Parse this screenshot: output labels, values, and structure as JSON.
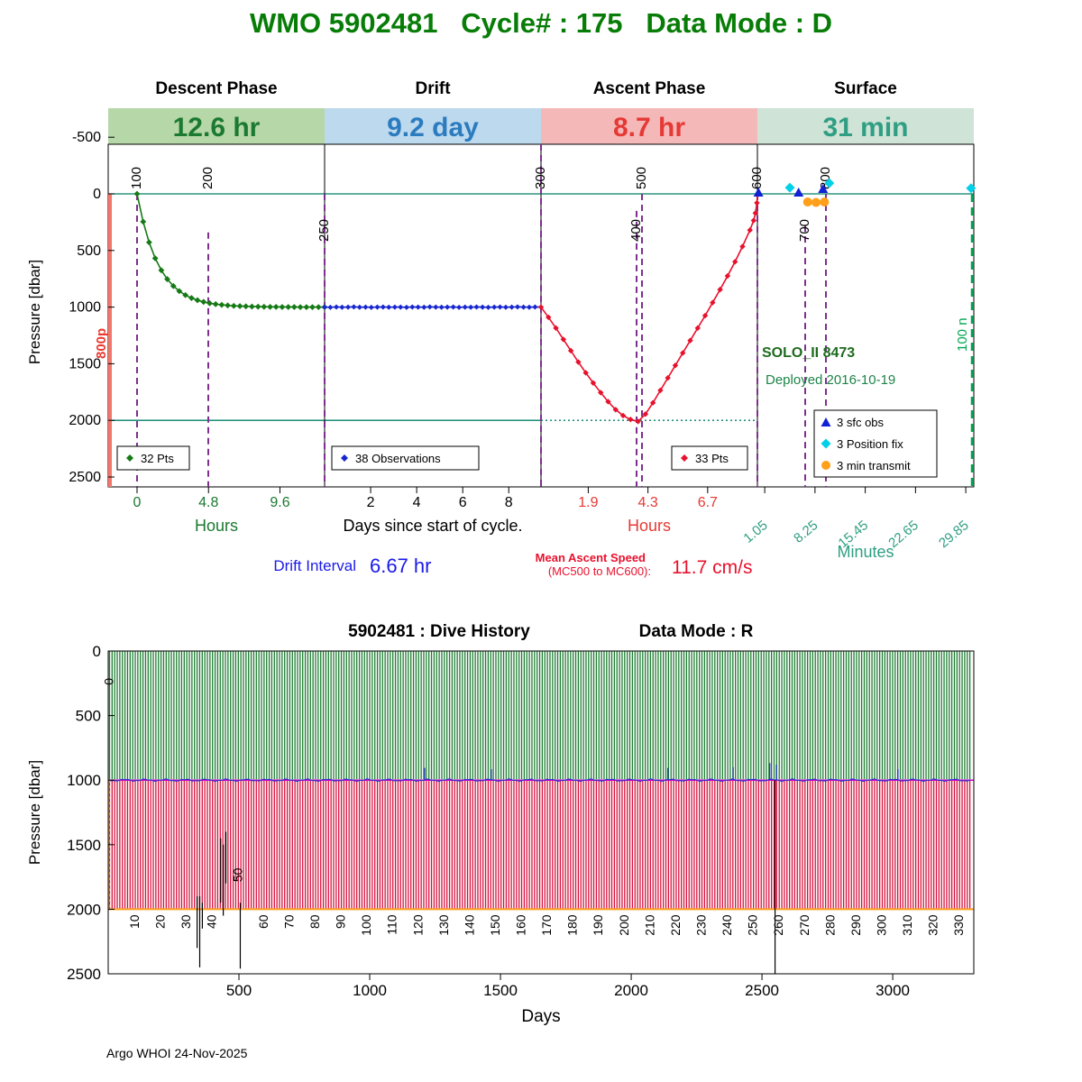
{
  "page": {
    "title": "WMO 5902481   Cycle# : 175   Data Mode : D",
    "footer": "Argo WHOI 24-Nov-2025"
  },
  "chart_data": [
    {
      "type": "line",
      "name": "cycle_profile",
      "ylabel": "Pressure [dbar]",
      "yticks": [
        -500,
        0,
        500,
        1000,
        1500,
        2000,
        2500
      ],
      "ylim": [
        -500,
        2590
      ],
      "colors": {
        "descent": "#157a15",
        "drift": "#1726cf",
        "ascent": "#e8112d",
        "teal": "#008066",
        "message_line": "#7e2f8e",
        "end_line": "#00a651",
        "park_line": "#f4766b",
        "park_label": "#e8392f",
        "sfc_obs": "#1021d6",
        "position_fix": "#00d0e8",
        "min_transmit": "#ff9f1a",
        "solo": "#1d6b1d",
        "deployed": "#1e8449",
        "drift_text": "#1a1ae8"
      },
      "phases": [
        {
          "label": "Descent Phase",
          "duration": "12.6 hr",
          "band_bg": "#b6d7a8",
          "band_fg": "#1b7931",
          "axis_label": "Hours",
          "axis_color": "#1b7931",
          "t_max": 12.6,
          "t_offset_frac": 0.1333,
          "t_span_frac": 0.8667,
          "ticks": [
            {
              "v": 0,
              "label": "0"
            },
            {
              "v": 4.8,
              "label": "4.8"
            },
            {
              "v": 9.6,
              "label": "9.6"
            }
          ]
        },
        {
          "label": "Drift",
          "duration": "9.2 day",
          "band_bg": "#bcd9ee",
          "band_fg": "#2b7bbf",
          "axis_label": "Days since start of cycle.",
          "axis_color": "#000000",
          "t_max": 9.4,
          "t_offset_frac": 0,
          "t_span_frac": 1,
          "ticks": [
            {
              "v": 2,
              "label": "2"
            },
            {
              "v": 4,
              "label": "4"
            },
            {
              "v": 6,
              "label": "6"
            },
            {
              "v": 8,
              "label": "8"
            }
          ]
        },
        {
          "label": "Ascent Phase",
          "duration": "8.7 hr",
          "band_bg": "#f5b8b8",
          "band_fg": "#e53935",
          "axis_label": "Hours",
          "axis_color": "#e53935",
          "t_max": 8.7,
          "t_offset_frac": 0,
          "t_span_frac": 1,
          "ticks": [
            {
              "v": 1.9,
              "label": "1.9"
            },
            {
              "v": 4.3,
              "label": "4.3"
            },
            {
              "v": 6.7,
              "label": "6.7"
            }
          ]
        },
        {
          "label": "Surface",
          "duration": "31 min",
          "band_bg": "#cfe3d6",
          "band_fg": "#2f9e83",
          "axis_label": "Minutes",
          "axis_color": "#2f9e83",
          "t_max": 31,
          "t_offset_frac": 0,
          "t_span_frac": 1,
          "ticks": [
            {
              "v": 1.05,
              "label": "1.05"
            },
            {
              "v": 8.25,
              "label": "8.25"
            },
            {
              "v": 15.45,
              "label": "15.45"
            },
            {
              "v": 22.65,
              "label": "22.65"
            },
            {
              "v": 29.85,
              "label": "29.85"
            }
          ]
        }
      ],
      "message_lines": [
        {
          "label": "100",
          "x": 152,
          "top_dbar": 0,
          "label_pos": "above"
        },
        {
          "label": "200",
          "x": 231,
          "top_dbar": 340,
          "label_pos": "above"
        },
        {
          "label": "250",
          "x": 360,
          "top_dbar": 0,
          "label_pos": "inside"
        },
        {
          "label": "300",
          "x": 600,
          "top_dbar": -500,
          "label_pos": "above"
        },
        {
          "label": "400",
          "x": 706,
          "top_dbar": 150,
          "label_pos": "inside"
        },
        {
          "label": "500",
          "x": 712,
          "top_dbar": 0,
          "label_pos": "above"
        },
        {
          "label": "600",
          "x": 840,
          "top_dbar": 0,
          "label_pos": "above"
        },
        {
          "label": "700",
          "x": 893,
          "top_dbar": 280,
          "label_pos": "inside"
        },
        {
          "label": "800",
          "x": 916,
          "top_dbar": 0,
          "label_pos": "above"
        }
      ],
      "park_label": "800p",
      "end_line": {
        "label": "100 n",
        "x": 1078
      },
      "series": {
        "descent": {
          "label": "32 Pts",
          "points": [
            [
              0,
              0
            ],
            [
              0.41,
              246
            ],
            [
              0.81,
              428
            ],
            [
              1.22,
              569
            ],
            [
              1.63,
              675
            ],
            [
              2.03,
              753
            ],
            [
              2.44,
              814
            ],
            [
              2.84,
              859
            ],
            [
              3.25,
              894
            ],
            [
              3.66,
              920
            ],
            [
              4.06,
              939
            ],
            [
              4.47,
              954
            ],
            [
              4.88,
              966
            ],
            [
              5.28,
              974
            ],
            [
              5.69,
              980
            ],
            [
              6.09,
              985
            ],
            [
              6.5,
              989
            ],
            [
              6.91,
              991
            ],
            [
              7.31,
              993
            ],
            [
              7.72,
              995
            ],
            [
              8.13,
              996
            ],
            [
              8.53,
              997
            ],
            [
              8.94,
              998
            ],
            [
              9.34,
              998
            ],
            [
              9.75,
              999
            ],
            [
              10.16,
              999
            ],
            [
              10.56,
              999
            ],
            [
              10.97,
              1000
            ],
            [
              11.38,
              1000
            ],
            [
              11.78,
              1000
            ],
            [
              12.19,
              1000
            ],
            [
              12.6,
              1000
            ]
          ]
        },
        "drift": {
          "label": "38 Observations",
          "points": [
            [
              0,
              1000
            ],
            [
              0.25,
              1002
            ],
            [
              0.51,
              999
            ],
            [
              0.76,
              1001
            ],
            [
              1.02,
              1000
            ],
            [
              1.27,
              998
            ],
            [
              1.52,
              1001
            ],
            [
              1.78,
              1000
            ],
            [
              2.03,
              1002
            ],
            [
              2.29,
              1000
            ],
            [
              2.54,
              999
            ],
            [
              2.79,
              1001
            ],
            [
              3.05,
              1000
            ],
            [
              3.3,
              1000
            ],
            [
              3.56,
              1002
            ],
            [
              3.81,
              999
            ],
            [
              4.06,
              1000
            ],
            [
              4.32,
              1001
            ],
            [
              4.57,
              998
            ],
            [
              4.83,
              1000
            ],
            [
              5.08,
              1001
            ],
            [
              5.33,
              1000
            ],
            [
              5.59,
              999
            ],
            [
              5.84,
              1002
            ],
            [
              6.1,
              1000
            ],
            [
              6.35,
              1001
            ],
            [
              6.6,
              999
            ],
            [
              6.86,
              1000
            ],
            [
              7.11,
              1002
            ],
            [
              7.37,
              1000
            ],
            [
              7.62,
              999
            ],
            [
              7.87,
              1001
            ],
            [
              8.13,
              1000
            ],
            [
              8.38,
              998
            ],
            [
              8.64,
              1000
            ],
            [
              8.89,
              1001
            ],
            [
              9.14,
              999
            ],
            [
              9.4,
              1000
            ]
          ]
        },
        "ascent": {
          "label": "33 Pts",
          "points": [
            [
              0,
              1000
            ],
            [
              0.3,
              1090
            ],
            [
              0.6,
              1185
            ],
            [
              0.9,
              1285
            ],
            [
              1.2,
              1385
            ],
            [
              1.5,
              1485
            ],
            [
              1.8,
              1580
            ],
            [
              2.1,
              1670
            ],
            [
              2.4,
              1755
            ],
            [
              2.7,
              1835
            ],
            [
              3.0,
              1905
            ],
            [
              3.3,
              1958
            ],
            [
              3.6,
              1992
            ],
            [
              3.9,
              2010
            ],
            [
              4.2,
              1945
            ],
            [
              4.5,
              1845
            ],
            [
              4.8,
              1735
            ],
            [
              5.1,
              1625
            ],
            [
              5.4,
              1515
            ],
            [
              5.7,
              1405
            ],
            [
              6.0,
              1295
            ],
            [
              6.3,
              1185
            ],
            [
              6.6,
              1075
            ],
            [
              6.9,
              960
            ],
            [
              7.2,
              845
            ],
            [
              7.5,
              725
            ],
            [
              7.8,
              600
            ],
            [
              8.1,
              465
            ],
            [
              8.4,
              320
            ],
            [
              8.55,
              235
            ],
            [
              8.62,
              170
            ],
            [
              8.68,
              80
            ],
            [
              8.7,
              10
            ]
          ]
        }
      },
      "surface_markers": {
        "sfc_obs": {
          "label": "3 sfc obs",
          "points": [
            [
              0.15,
              -8
            ],
            [
              5.9,
              -8
            ],
            [
              9.4,
              -40
            ]
          ]
        },
        "position_fix": {
          "label": "3 Position fix",
          "points": [
            [
              4.65,
              -55
            ],
            [
              10.3,
              -95
            ],
            [
              30.6,
              -50
            ]
          ]
        },
        "min_transmit": {
          "label": "3 min transmit",
          "points": [
            [
              7.2,
              72
            ],
            [
              8.4,
              76
            ],
            [
              9.6,
              72
            ]
          ]
        }
      },
      "annotations": {
        "float_id": "SOLO_II 8473",
        "deployed": "Deployed 2016-10-19",
        "drift_interval_label": "Drift Interval",
        "drift_interval_value": "6.67 hr",
        "ascent_speed_label": "Mean Ascent Speed",
        "ascent_speed_sub": "(MC500 to MC600):",
        "ascent_speed_value": "11.7 cm/s"
      }
    },
    {
      "type": "bar",
      "name": "dive_history",
      "title_left": "5902481 : Dive History",
      "title_right": "Data Mode : R",
      "ylabel": "Pressure [dbar]",
      "xlabel": "Days",
      "yticks": [
        0,
        500,
        1000,
        1500,
        2000,
        2500
      ],
      "xticks": [
        500,
        1000,
        1500,
        2000,
        2500,
        3000
      ],
      "xlim": [
        0,
        3310
      ],
      "ylim": [
        0,
        2500
      ],
      "num_cycles": 335,
      "first_day": 5,
      "cycle_interval_days": 9.85,
      "park_dbar": 1000,
      "profile_dbar": 2000,
      "cycle_labels": [
        "0",
        "10",
        "20",
        "30",
        "40",
        "50",
        "60",
        "70",
        "80",
        "90",
        "100",
        "110",
        "120",
        "130",
        "140",
        "150",
        "160",
        "170",
        "180",
        "190",
        "200",
        "210",
        "220",
        "230",
        "240",
        "250",
        "260",
        "270",
        "280",
        "290",
        "300",
        "310",
        "320",
        "330"
      ],
      "special_label": {
        "text": "50",
        "dbar": 1680
      },
      "anomalies": [
        {
          "day": 340,
          "from": 1900,
          "to": 2300
        },
        {
          "day": 350,
          "from": 1900,
          "to": 2450
        },
        {
          "day": 360,
          "from": 1950,
          "to": 2150
        },
        {
          "day": 430,
          "from": 1450,
          "to": 1950
        },
        {
          "day": 440,
          "from": 1500,
          "to": 2050
        },
        {
          "day": 450,
          "from": 1400,
          "to": 1800
        },
        {
          "day": 505,
          "from": 1950,
          "to": 2460
        },
        {
          "day": 2550,
          "from": 1000,
          "to": 2500
        }
      ],
      "noise_spikes": [
        {
          "day": 1210,
          "dbar": 905
        },
        {
          "day": 1465,
          "dbar": 915
        },
        {
          "day": 2140,
          "dbar": 905
        },
        {
          "day": 2390,
          "dbar": 900
        },
        {
          "day": 2530,
          "dbar": 868
        },
        {
          "day": 2555,
          "dbar": 880
        },
        {
          "day": 3020,
          "dbar": 915
        }
      ],
      "colors": {
        "shallow": "#1e7d32",
        "deep": "#d6103c",
        "park_line": "#cc00cc",
        "bottom_line": "#ff9f1a",
        "noise": "#2233cc",
        "anomaly": "#000000"
      }
    }
  ]
}
